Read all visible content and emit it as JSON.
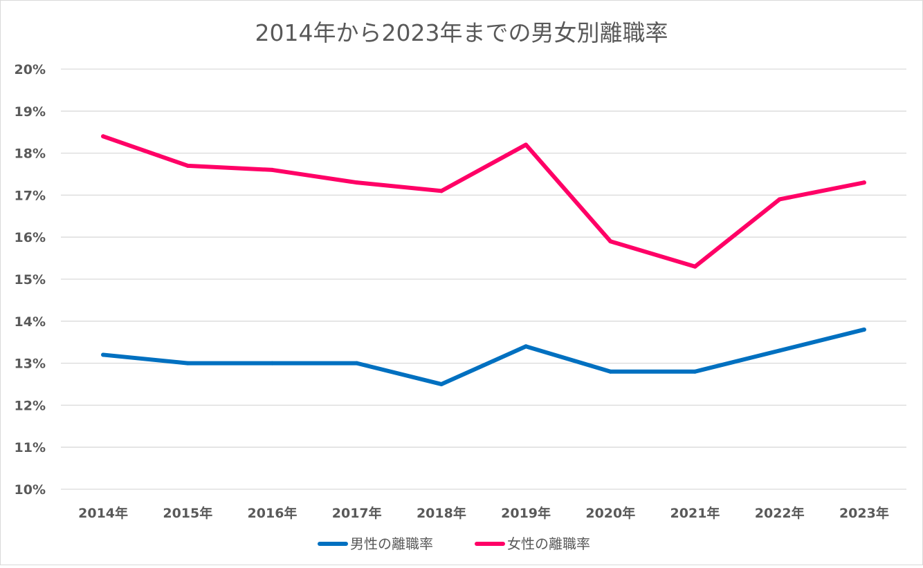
{
  "chart_data": {
    "type": "line",
    "title": "2014年から2023年までの男女別離職率",
    "categories": [
      "2014年",
      "2015年",
      "2016年",
      "2017年",
      "2018年",
      "2019年",
      "2020年",
      "2021年",
      "2022年",
      "2023年"
    ],
    "series": [
      {
        "name": "男性の離職率",
        "color": "#0070c0",
        "values": [
          13.2,
          13.0,
          13.0,
          13.0,
          12.5,
          13.4,
          12.8,
          12.8,
          13.3,
          13.8
        ]
      },
      {
        "name": "女性の離職率",
        "color": "#ff0066",
        "values": [
          18.4,
          17.7,
          17.6,
          17.3,
          17.1,
          18.2,
          15.9,
          15.3,
          16.9,
          17.3
        ]
      }
    ],
    "ylim": [
      10,
      20
    ],
    "yticks": [
      "10%",
      "11%",
      "12%",
      "13%",
      "14%",
      "15%",
      "16%",
      "17%",
      "18%",
      "19%",
      "20%"
    ],
    "grid": true,
    "legend_position": "bottom",
    "xlabel": "",
    "ylabel": ""
  }
}
